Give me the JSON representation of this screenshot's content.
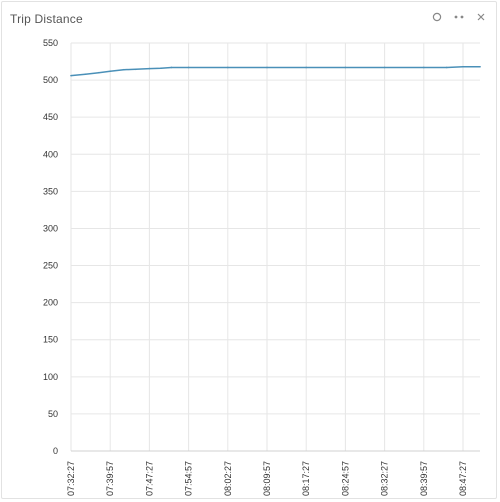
{
  "widget": {
    "title": "Trip Distance",
    "controls": {
      "status_icon": "circle-icon",
      "menu_icon": "more-icon",
      "close_icon": "close-icon"
    }
  },
  "chart_data": {
    "type": "line",
    "title": "Trip Distance",
    "xlabel": "",
    "ylabel": "",
    "ylim": [
      0,
      550
    ],
    "y_ticks": [
      "0",
      "50",
      "100",
      "150",
      "200",
      "250",
      "300",
      "350",
      "400",
      "450",
      "500",
      "550"
    ],
    "x_ticks": [
      "07:32:27",
      "07:39:57",
      "07:47:27",
      "07:54:57",
      "08:02:27",
      "08:09:57",
      "08:17:27",
      "08:24:57",
      "08:32:27",
      "08:39:57",
      "08:47:27"
    ],
    "grid": true,
    "line_color": "#4a90b8",
    "series": [
      {
        "x": [
          "07:32:27",
          "07:35:12",
          "07:37:45",
          "07:39:57",
          "07:42:30",
          "07:44:50",
          "07:47:27",
          "07:49:40",
          "07:51:40",
          "07:54:57",
          "08:02:27",
          "08:09:57",
          "08:17:27",
          "08:24:57",
          "08:32:27",
          "08:39:57",
          "08:44:20",
          "08:47:27",
          "08:50:43"
        ],
        "values": [
          506,
          508,
          510,
          512,
          514,
          514.5,
          515.5,
          516,
          517,
          517,
          517,
          517,
          517,
          517,
          517,
          517,
          517,
          518,
          518
        ]
      }
    ]
  }
}
